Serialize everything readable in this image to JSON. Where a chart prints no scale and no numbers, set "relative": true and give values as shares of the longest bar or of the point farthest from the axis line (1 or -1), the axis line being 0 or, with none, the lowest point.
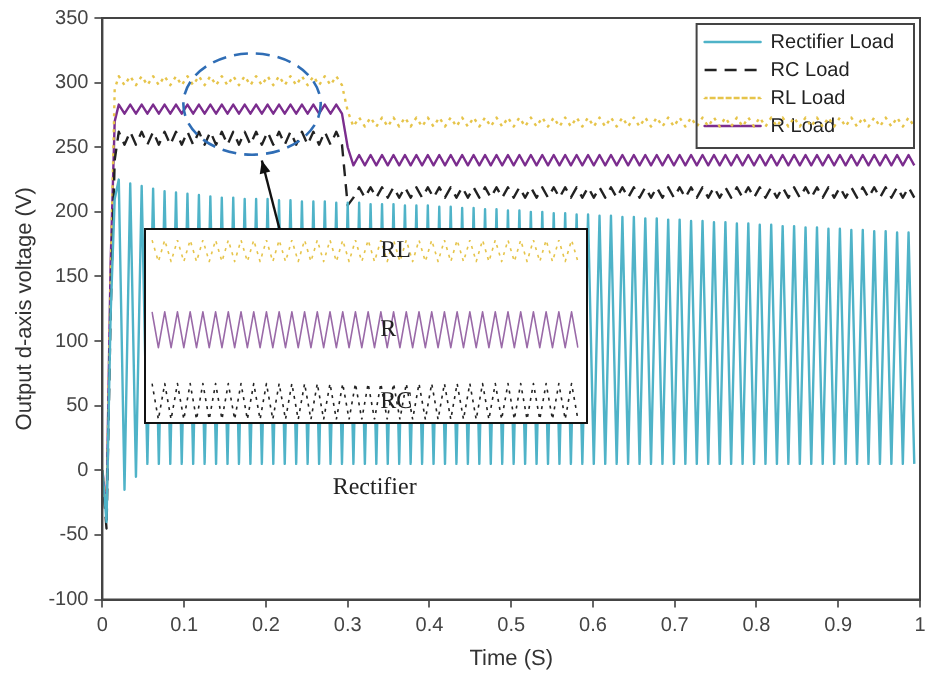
{
  "chart_data": [
    {
      "type": "line",
      "xlabel": "Time (S)",
      "ylabel": "Output d-axis voltage (V)",
      "xlim": [
        0,
        1
      ],
      "xticks": [
        0,
        0.1,
        0.2,
        0.3,
        0.4,
        0.5,
        0.6,
        0.7,
        0.8,
        0.9,
        1
      ],
      "ylim": [
        -100,
        350
      ],
      "yticks": [
        -100,
        -50,
        0,
        50,
        100,
        150,
        200,
        250,
        300,
        350
      ],
      "grid": false,
      "legend": "top right",
      "marker": "none",
      "annotations": [
        "Rectifier"
      ],
      "x": [
        0,
        0.005,
        0.01,
        0.015,
        0.02,
        0.027,
        0.034,
        0.041,
        0.048,
        0.055,
        0.062,
        0.069,
        0.076,
        0.083,
        0.09,
        0.097,
        0.104,
        0.111,
        0.118,
        0.125,
        0.132,
        0.139,
        0.146,
        0.153,
        0.16,
        0.167,
        0.174,
        0.181,
        0.188,
        0.195,
        0.202,
        0.209,
        0.216,
        0.223,
        0.23,
        0.237,
        0.244,
        0.251,
        0.258,
        0.265,
        0.272,
        0.279,
        0.286,
        0.293,
        0.3,
        0.307,
        0.314,
        0.321,
        0.328,
        0.335,
        0.342,
        0.349,
        0.356,
        0.363,
        0.37,
        0.377,
        0.384,
        0.391,
        0.398,
        0.405,
        0.412,
        0.419,
        0.426,
        0.433,
        0.44,
        0.447,
        0.454,
        0.461,
        0.468,
        0.475,
        0.482,
        0.489,
        0.496,
        0.503,
        0.51,
        0.517,
        0.524,
        0.531,
        0.538,
        0.545,
        0.552,
        0.559,
        0.566,
        0.573,
        0.58,
        0.587,
        0.594,
        0.601,
        0.608,
        0.615,
        0.622,
        0.629,
        0.636,
        0.643,
        0.65,
        0.657,
        0.664,
        0.671,
        0.678,
        0.685,
        0.692,
        0.699,
        0.706,
        0.713,
        0.72,
        0.727,
        0.734,
        0.741,
        0.748,
        0.755,
        0.762,
        0.769,
        0.776,
        0.783,
        0.79,
        0.797,
        0.804,
        0.811,
        0.818,
        0.825,
        0.832,
        0.839,
        0.846,
        0.853,
        0.86,
        0.867,
        0.874,
        0.881,
        0.888,
        0.895,
        0.902,
        0.909,
        0.916,
        0.923,
        0.93,
        0.937,
        0.944,
        0.951,
        0.958,
        0.965,
        0.972,
        0.979,
        0.986,
        0.993
      ],
      "series": [
        {
          "name": "Rectifier Load",
          "color": "#4fb3c8",
          "line_style": "solid",
          "values": [
            0,
            -40,
            120,
            210,
            225,
            -15,
            222,
            -5,
            220,
            5,
            218,
            5,
            216,
            5,
            215,
            5,
            214,
            5,
            213,
            5,
            212,
            5,
            211,
            5,
            211,
            5,
            210,
            5,
            210,
            5,
            210,
            5,
            209,
            5,
            209,
            5,
            208,
            5,
            208,
            5,
            208,
            5,
            207,
            5,
            207,
            5,
            207,
            5,
            206,
            5,
            206,
            5,
            206,
            5,
            205,
            5,
            205,
            5,
            205,
            5,
            204,
            5,
            204,
            5,
            203,
            5,
            203,
            5,
            202,
            5,
            202,
            5,
            201,
            5,
            201,
            5,
            200,
            5,
            200,
            5,
            199,
            5,
            199,
            5,
            198,
            5,
            198,
            5,
            197,
            5,
            197,
            5,
            196,
            5,
            196,
            5,
            195,
            5,
            195,
            5,
            194,
            5,
            194,
            5,
            193,
            5,
            193,
            5,
            192,
            5,
            192,
            5,
            191,
            5,
            191,
            5,
            190,
            5,
            190,
            5,
            189,
            5,
            189,
            5,
            188,
            5,
            188,
            5,
            187,
            5,
            187,
            5,
            186,
            5,
            186,
            5,
            185,
            5,
            185,
            5,
            184,
            5,
            184,
            5
          ]
        },
        {
          "name": "RC Load",
          "color": "#222222",
          "line_style": "dashed",
          "values": [
            -5,
            -45,
            120,
            240,
            262,
            252,
            262,
            252,
            262,
            252,
            262,
            252,
            262,
            252,
            262,
            252,
            262,
            252,
            262,
            252,
            262,
            252,
            262,
            252,
            262,
            252,
            262,
            252,
            262,
            252,
            262,
            252,
            262,
            252,
            262,
            252,
            262,
            252,
            262,
            252,
            262,
            252,
            262,
            252,
            205,
            211,
            219,
            211,
            219,
            211,
            219,
            211,
            219,
            211,
            219,
            211,
            219,
            211,
            219,
            211,
            219,
            211,
            219,
            211,
            219,
            211,
            219,
            211,
            219,
            211,
            219,
            211,
            219,
            211,
            219,
            211,
            219,
            211,
            219,
            211,
            219,
            211,
            219,
            211,
            219,
            211,
            219,
            211,
            219,
            211,
            219,
            211,
            219,
            211,
            219,
            211,
            219,
            211,
            219,
            211,
            219,
            211,
            219,
            211,
            219,
            211,
            219,
            211,
            219,
            211,
            219,
            211,
            219,
            211,
            219,
            211,
            219,
            211,
            219,
            211,
            219,
            211,
            219,
            211,
            219,
            211,
            219,
            211,
            219,
            211,
            219,
            211,
            219,
            211,
            219,
            211,
            219,
            211,
            219,
            211,
            219,
            211,
            219,
            211
          ]
        },
        {
          "name": "RL Load",
          "color": "#e6c44a",
          "line_style": "dotted",
          "values": [
            0,
            -30,
            150,
            295,
            305,
            298,
            305,
            298,
            305,
            298,
            305,
            298,
            305,
            298,
            305,
            298,
            305,
            298,
            305,
            298,
            305,
            298,
            305,
            298,
            305,
            298,
            305,
            298,
            305,
            298,
            305,
            298,
            305,
            298,
            305,
            298,
            305,
            298,
            305,
            298,
            305,
            298,
            305,
            298,
            278,
            266,
            273,
            266,
            273,
            266,
            273,
            266,
            273,
            266,
            273,
            266,
            273,
            266,
            273,
            266,
            273,
            266,
            273,
            266,
            273,
            266,
            273,
            266,
            273,
            266,
            273,
            266,
            273,
            266,
            273,
            266,
            273,
            266,
            273,
            266,
            273,
            266,
            273,
            266,
            273,
            266,
            273,
            266,
            273,
            266,
            273,
            266,
            273,
            266,
            273,
            266,
            273,
            266,
            273,
            266,
            273,
            266,
            273,
            266,
            273,
            266,
            273,
            266,
            273,
            266,
            273,
            266,
            273,
            266,
            273,
            266,
            273,
            266,
            273,
            266,
            273,
            266,
            273,
            266,
            273,
            266,
            273,
            266,
            273,
            266,
            273,
            266,
            273,
            266,
            273,
            266,
            273,
            266,
            273,
            266,
            273,
            266,
            273,
            266
          ]
        },
        {
          "name": "R Load",
          "color": "#7b2d8e",
          "line_style": "solid",
          "values": [
            0,
            -30,
            160,
            270,
            283,
            276,
            283,
            276,
            283,
            276,
            283,
            276,
            283,
            276,
            283,
            276,
            283,
            276,
            283,
            276,
            283,
            276,
            283,
            276,
            283,
            276,
            283,
            276,
            283,
            276,
            283,
            276,
            283,
            276,
            283,
            276,
            283,
            276,
            283,
            276,
            283,
            276,
            283,
            276,
            250,
            236,
            244,
            236,
            244,
            236,
            244,
            236,
            244,
            236,
            244,
            236,
            244,
            236,
            244,
            236,
            244,
            236,
            244,
            236,
            244,
            236,
            244,
            236,
            244,
            236,
            244,
            236,
            244,
            236,
            244,
            236,
            244,
            236,
            244,
            236,
            244,
            236,
            244,
            236,
            244,
            236,
            244,
            236,
            244,
            236,
            244,
            236,
            244,
            236,
            244,
            236,
            244,
            236,
            244,
            236,
            244,
            236,
            244,
            236,
            244,
            236,
            244,
            236,
            244,
            236,
            244,
            236,
            244,
            236,
            244,
            236,
            244,
            236,
            244,
            236,
            244,
            236,
            244,
            236,
            244,
            236,
            244,
            236,
            244,
            236,
            244,
            236,
            244,
            236,
            244,
            236,
            244,
            236,
            244,
            236,
            244,
            236,
            244,
            236
          ]
        }
      ]
    },
    {
      "type": "line",
      "relative": true,
      "legend": false,
      "marker": "none",
      "categories": [
        null,
        null,
        null,
        null,
        null,
        null,
        null,
        null,
        null,
        null,
        null,
        null,
        null,
        null,
        null,
        null,
        null,
        null,
        null,
        null,
        null,
        null,
        null,
        null,
        null,
        null,
        null,
        null,
        null,
        null,
        null,
        null,
        null,
        null,
        null,
        null,
        null,
        null,
        null,
        null,
        null,
        null,
        null,
        null,
        null,
        null,
        null,
        null,
        null,
        null,
        null,
        null,
        null,
        null,
        null,
        null,
        null,
        null,
        null,
        null,
        null,
        null,
        null,
        null,
        null,
        null,
        null,
        null
      ],
      "series": [
        {
          "name": "RL",
          "color": "#e6c44a",
          "line_style": "dotted",
          "values": [
            1,
            0.88,
            1,
            0.88,
            1,
            0.88,
            1,
            0.88,
            1,
            0.88,
            1,
            0.88,
            1,
            0.88,
            1,
            0.88,
            1,
            0.88,
            1,
            0.88,
            1,
            0.88,
            1,
            0.88,
            1,
            0.88,
            1,
            0.88,
            1,
            0.88,
            1,
            0.88,
            1,
            0.88,
            1,
            0.88,
            1,
            0.88,
            1,
            0.88,
            1,
            0.88,
            1,
            0.88,
            1,
            0.88,
            1,
            0.88,
            1,
            0.88,
            1,
            0.88,
            1,
            0.88,
            1,
            0.88,
            1,
            0.88,
            1,
            0.88,
            1,
            0.88,
            1,
            0.88,
            1,
            0.88,
            1,
            0.88
          ]
        },
        {
          "name": "R",
          "color": "#9a6aa8",
          "line_style": "solid",
          "values": [
            0.6,
            0.4,
            0.6,
            0.4,
            0.6,
            0.4,
            0.6,
            0.4,
            0.6,
            0.4,
            0.6,
            0.4,
            0.6,
            0.4,
            0.6,
            0.4,
            0.6,
            0.4,
            0.6,
            0.4,
            0.6,
            0.4,
            0.6,
            0.4,
            0.6,
            0.4,
            0.6,
            0.4,
            0.6,
            0.4,
            0.6,
            0.4,
            0.6,
            0.4,
            0.6,
            0.4,
            0.6,
            0.4,
            0.6,
            0.4,
            0.6,
            0.4,
            0.6,
            0.4,
            0.6,
            0.4,
            0.6,
            0.4,
            0.6,
            0.4,
            0.6,
            0.4,
            0.6,
            0.4,
            0.6,
            0.4,
            0.6,
            0.4,
            0.6,
            0.4,
            0.6,
            0.4,
            0.6,
            0.4,
            0.6,
            0.4,
            0.6,
            0.4
          ]
        },
        {
          "name": "RC",
          "color": "#222222",
          "line_style": "dotted",
          "values": [
            0.2,
            0,
            0.2,
            0,
            0.2,
            0,
            0.2,
            0,
            0.2,
            0,
            0.2,
            0,
            0.2,
            0,
            0.2,
            0,
            0.2,
            0,
            0.2,
            0,
            0.2,
            0,
            0.2,
            0,
            0.2,
            0,
            0.2,
            0,
            0.2,
            0,
            0.2,
            0,
            0.2,
            0,
            0.2,
            0,
            0.2,
            0,
            0.2,
            0,
            0.2,
            0,
            0.2,
            0,
            0.2,
            0,
            0.2,
            0,
            0.2,
            0,
            0.2,
            0,
            0.2,
            0,
            0.2,
            0,
            0.2,
            0,
            0.2,
            0,
            0.2,
            0,
            0.2,
            0,
            0.2,
            0,
            0.2,
            0
          ]
        }
      ]
    }
  ]
}
